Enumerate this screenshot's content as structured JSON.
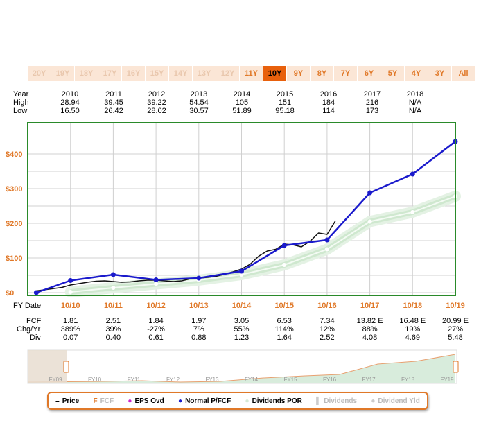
{
  "tabs": [
    {
      "label": "20Y",
      "state": "disabled"
    },
    {
      "label": "19Y",
      "state": "disabled"
    },
    {
      "label": "18Y",
      "state": "disabled"
    },
    {
      "label": "17Y",
      "state": "disabled"
    },
    {
      "label": "16Y",
      "state": "disabled"
    },
    {
      "label": "15Y",
      "state": "disabled"
    },
    {
      "label": "14Y",
      "state": "disabled"
    },
    {
      "label": "13Y",
      "state": "disabled"
    },
    {
      "label": "12Y",
      "state": "disabled"
    },
    {
      "label": "11Y",
      "state": "available"
    },
    {
      "label": "10Y",
      "state": "active"
    },
    {
      "label": "9Y",
      "state": "available"
    },
    {
      "label": "8Y",
      "state": "available"
    },
    {
      "label": "7Y",
      "state": "available"
    },
    {
      "label": "6Y",
      "state": "available"
    },
    {
      "label": "5Y",
      "state": "available"
    },
    {
      "label": "4Y",
      "state": "available"
    },
    {
      "label": "3Y",
      "state": "available"
    },
    {
      "label": "All",
      "state": "available"
    }
  ],
  "price_table": {
    "labels": {
      "year": "Year",
      "high": "High",
      "low": "Low"
    },
    "years": [
      "2010",
      "2011",
      "2012",
      "2013",
      "2014",
      "2015",
      "2016",
      "2017",
      "2018"
    ],
    "high": [
      "28.94",
      "39.45",
      "39.22",
      "54.54",
      "105",
      "151",
      "184",
      "216",
      "N/A"
    ],
    "low": [
      "16.50",
      "26.42",
      "28.02",
      "30.57",
      "51.89",
      "95.18",
      "114",
      "173",
      "N/A"
    ]
  },
  "fy_table": {
    "fy_label": "FY Date",
    "fcf_label": "FCF",
    "chg_label": "Chg/Yr",
    "div_label": "Div",
    "dates": [
      "10/10",
      "10/11",
      "10/12",
      "10/13",
      "10/14",
      "10/15",
      "10/16",
      "10/17",
      "10/18",
      "10/19"
    ],
    "fcf": [
      "1.81",
      "2.51",
      "1.84",
      "1.97",
      "3.05",
      "6.53",
      "7.34",
      "13.82 E",
      "16.48 E",
      "20.99 E"
    ],
    "chg": [
      "389%",
      "39%",
      "-27%",
      "7%",
      "55%",
      "114%",
      "12%",
      "88%",
      "19%",
      "27%"
    ],
    "div": [
      "0.07",
      "0.40",
      "0.61",
      "0.88",
      "1.23",
      "1.64",
      "2.52",
      "4.08",
      "4.69",
      "5.48"
    ]
  },
  "navigator": {
    "labels": [
      "FY09",
      "FY10",
      "FY11",
      "FY12",
      "FY13",
      "FY14",
      "FY15",
      "FY16",
      "FY17",
      "FY18",
      "FY19"
    ]
  },
  "legend": [
    {
      "label": "Price",
      "marker": "–",
      "color": "#000000",
      "active": true
    },
    {
      "label": "FCF",
      "marker": "F",
      "color": "#e07828",
      "active": false
    },
    {
      "label": "EPS Ovd",
      "marker": "●",
      "color": "#cc22cc",
      "active": true
    },
    {
      "label": "Normal P/FCF",
      "marker": "●",
      "color": "#1a1acc",
      "active": true
    },
    {
      "label": "Dividends POR",
      "marker": "●",
      "color": "#d6ead6",
      "active": true
    },
    {
      "label": "Dividends",
      "marker": "▌",
      "color": "#cccccc",
      "active": false
    },
    {
      "label": "Dividend Yld",
      "marker": "●",
      "color": "#cccccc",
      "active": false
    }
  ],
  "chart_data": {
    "type": "line",
    "ylim": [
      0,
      440
    ],
    "y_ticks": [
      "$0",
      "$100",
      "$200",
      "$300",
      "$400"
    ],
    "x_categories": [
      "10/10",
      "10/11",
      "10/12",
      "10/13",
      "10/14",
      "10/15",
      "10/16",
      "10/17",
      "10/18",
      "10/19"
    ],
    "colors": {
      "price": "#111111",
      "normal": "#1a1acc",
      "dividends_por": "#cfe8cf",
      "axis_labels": "#e07828",
      "frame": "#2a8a2a"
    },
    "series": [
      {
        "name": "Normal P/FCF",
        "x": [
          9.2,
          10,
          11,
          12,
          13,
          14,
          15,
          16,
          17,
          18,
          19
        ],
        "values": [
          0,
          35,
          52,
          37,
          42,
          62,
          136,
          152,
          288,
          342,
          436
        ]
      },
      {
        "name": "Dividends POR",
        "x": [
          10,
          11,
          12,
          13,
          14,
          15,
          16,
          17,
          18,
          19
        ],
        "values": [
          2,
          14,
          25,
          36,
          52,
          80,
          125,
          205,
          232,
          278
        ]
      },
      {
        "name": "Price",
        "x": [
          9.2,
          9.5,
          9.8,
          10.0,
          10.2,
          10.4,
          10.6,
          10.8,
          11.0,
          11.2,
          11.4,
          11.6,
          11.8,
          12.0,
          12.2,
          12.4,
          12.6,
          12.8,
          13.0,
          13.2,
          13.4,
          13.6,
          13.8,
          14.0,
          14.2,
          14.4,
          14.6,
          14.8,
          15.0,
          15.2,
          15.4,
          15.6,
          15.8,
          16.0,
          16.2
        ],
        "values": [
          5,
          10,
          15,
          22,
          26,
          30,
          33,
          34,
          32,
          30,
          31,
          34,
          36,
          36,
          34,
          32,
          34,
          40,
          42,
          44,
          47,
          53,
          60,
          68,
          82,
          105,
          120,
          125,
          140,
          138,
          132,
          148,
          172,
          168,
          208
        ]
      }
    ]
  }
}
